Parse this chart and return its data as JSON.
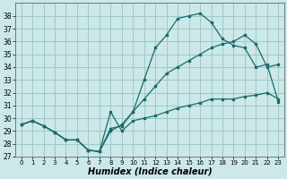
{
  "xlabel": "Humidex (Indice chaleur)",
  "bg_color": "#cce8e8",
  "grid_color": "#9fc8c8",
  "line_color": "#1a6b6b",
  "xlim": [
    -0.5,
    23.5
  ],
  "ylim": [
    27,
    39
  ],
  "xticks": [
    0,
    1,
    2,
    3,
    4,
    5,
    6,
    7,
    8,
    9,
    10,
    11,
    12,
    13,
    14,
    15,
    16,
    17,
    18,
    19,
    20,
    21,
    22,
    23
  ],
  "yticks": [
    27,
    28,
    29,
    30,
    31,
    32,
    33,
    34,
    35,
    36,
    37,
    38
  ],
  "series_wavy": {
    "x": [
      0,
      1,
      2,
      3,
      4,
      5,
      6,
      7,
      8,
      9,
      10,
      11,
      12,
      13,
      14,
      15,
      16,
      17,
      18,
      19,
      20,
      21,
      22,
      23
    ],
    "y": [
      29.5,
      29.8,
      29.4,
      28.9,
      28.3,
      28.3,
      27.5,
      27.4,
      30.5,
      29.0,
      29.8,
      30.0,
      30.2,
      30.5,
      30.8,
      31.0,
      31.2,
      31.5,
      31.5,
      31.5,
      31.7,
      31.8,
      32.0,
      31.5
    ]
  },
  "series_top": {
    "x": [
      0,
      1,
      2,
      3,
      4,
      5,
      6,
      7,
      8,
      9,
      10,
      11,
      12,
      13,
      14,
      15,
      16,
      17,
      18,
      19,
      20,
      21,
      22,
      23
    ],
    "y": [
      29.5,
      29.8,
      29.4,
      28.9,
      28.3,
      28.3,
      27.5,
      27.4,
      29.2,
      29.4,
      30.5,
      33.0,
      35.5,
      36.5,
      37.8,
      38.0,
      38.2,
      37.5,
      36.2,
      35.7,
      35.5,
      34.0,
      34.2,
      31.3
    ]
  },
  "series_linear1": {
    "x": [
      0,
      1,
      2,
      3,
      4,
      5,
      6,
      7,
      8,
      9,
      10,
      11,
      12,
      13,
      14,
      15,
      16,
      17,
      18,
      19,
      20,
      21,
      22,
      23
    ],
    "y": [
      29.5,
      29.8,
      29.4,
      28.9,
      28.3,
      28.3,
      27.5,
      27.4,
      29.0,
      29.5,
      30.5,
      31.5,
      32.5,
      33.5,
      34.0,
      34.5,
      35.0,
      35.5,
      35.8,
      36.0,
      36.5,
      35.8,
      34.0,
      34.2
    ]
  },
  "series_linear2": {
    "x": [
      0,
      23
    ],
    "y": [
      29.5,
      31.5
    ]
  }
}
